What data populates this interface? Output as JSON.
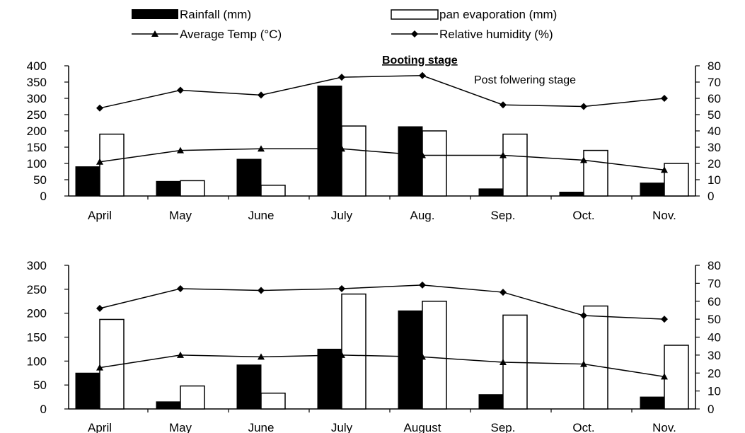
{
  "legend": {
    "rainfall": "Rainfall (mm)",
    "pan_evaporation": "pan evaporation (mm)",
    "avg_temp": "Average Temp (°C)",
    "humidity": "Relative humidity (%)"
  },
  "annotations": {
    "booting": "Booting stage",
    "postflowering": "Post folwering stage"
  },
  "colors": {
    "rainfall": "#000000",
    "pan_evaporation": "#ffffff",
    "lines": "#000000"
  },
  "chart_data": [
    {
      "type": "bar",
      "categories": [
        "April",
        "May",
        "June",
        "July",
        "Aug.",
        "Sep.",
        "Oct.",
        "Nov."
      ],
      "ylim": [
        0,
        400
      ],
      "y_ticks": [
        0,
        50,
        100,
        150,
        200,
        250,
        300,
        350,
        400
      ],
      "y2lim": [
        0,
        80
      ],
      "y2_ticks": [
        0,
        10,
        20,
        30,
        40,
        50,
        60,
        70,
        80
      ],
      "grid": false,
      "legend_position": "top",
      "series": [
        {
          "name": "Rainfall (mm)",
          "type": "bar",
          "axis": "left",
          "values": [
            90,
            45,
            113,
            338,
            213,
            22,
            12,
            40
          ]
        },
        {
          "name": "pan evaporation (mm)",
          "type": "bar",
          "axis": "left",
          "values": [
            190,
            47,
            33,
            215,
            200,
            190,
            140,
            100
          ]
        },
        {
          "name": "Average Temp (°C)",
          "type": "line",
          "axis": "right",
          "marker": "triangle",
          "values": [
            21,
            28,
            29,
            29,
            25,
            25,
            22,
            16
          ]
        },
        {
          "name": "Relative humidity (%)",
          "type": "line",
          "axis": "right",
          "marker": "diamond",
          "values": [
            54,
            65,
            62,
            73,
            74,
            56,
            55,
            60
          ]
        }
      ]
    },
    {
      "type": "bar",
      "categories": [
        "April",
        "May",
        "June",
        "July",
        "August",
        "Sep.",
        "Oct.",
        "Nov."
      ],
      "ylim": [
        0,
        300
      ],
      "y_ticks": [
        0,
        50,
        100,
        150,
        200,
        250,
        300
      ],
      "y2lim": [
        0,
        80
      ],
      "y2_ticks": [
        0,
        10,
        20,
        30,
        40,
        50,
        60,
        70,
        80
      ],
      "grid": false,
      "series": [
        {
          "name": "Rainfall (mm)",
          "type": "bar",
          "axis": "left",
          "values": [
            75,
            15,
            92,
            125,
            205,
            30,
            0,
            25
          ]
        },
        {
          "name": "pan evaporation (mm)",
          "type": "bar",
          "axis": "left",
          "values": [
            187,
            48,
            33,
            240,
            225,
            196,
            215,
            133
          ]
        },
        {
          "name": "Average Temp (°C)",
          "type": "line",
          "axis": "right",
          "marker": "triangle",
          "values": [
            23,
            30,
            29,
            30,
            29,
            26,
            25,
            18
          ]
        },
        {
          "name": "Relative humidity (%)",
          "type": "line",
          "axis": "right",
          "marker": "diamond",
          "values": [
            56,
            67,
            66,
            67,
            69,
            65,
            52,
            50
          ]
        }
      ]
    }
  ]
}
